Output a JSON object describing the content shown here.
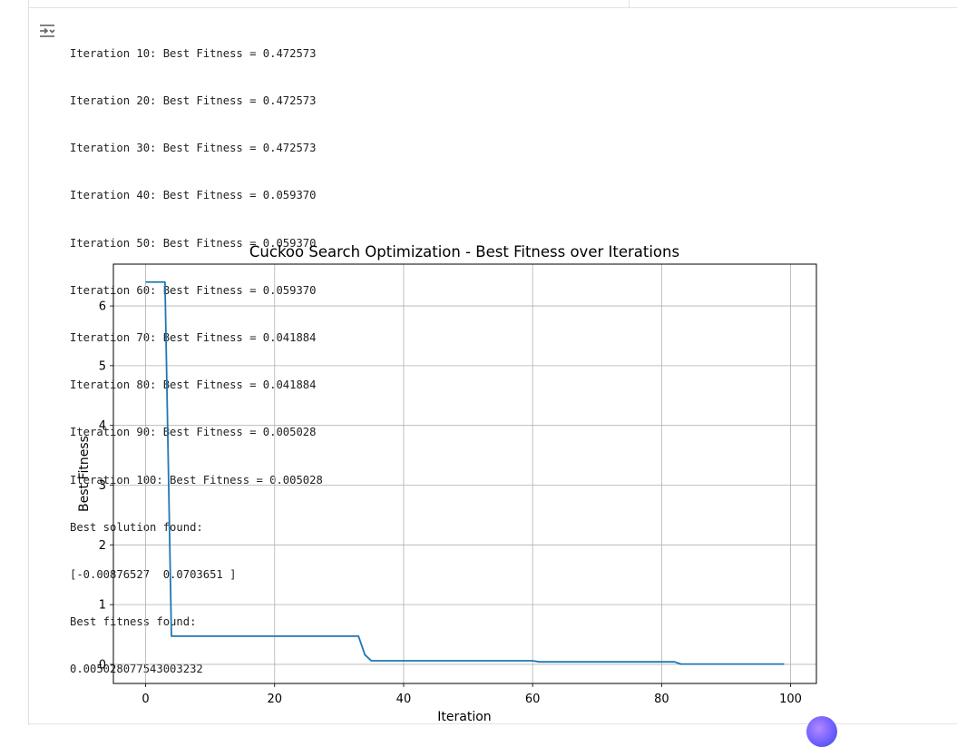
{
  "output": {
    "lines": [
      "Iteration 10: Best Fitness = 0.472573",
      "Iteration 20: Best Fitness = 0.472573",
      "Iteration 30: Best Fitness = 0.472573",
      "Iteration 40: Best Fitness = 0.059370",
      "Iteration 50: Best Fitness = 0.059370",
      "Iteration 60: Best Fitness = 0.059370",
      "Iteration 70: Best Fitness = 0.041884",
      "Iteration 80: Best Fitness = 0.041884",
      "Iteration 90: Best Fitness = 0.005028",
      "Iteration 100: Best Fitness = 0.005028",
      "Best solution found:",
      "[-0.00876527  0.0703651 ]",
      "Best fitness found:",
      "0.005028077543003232"
    ],
    "toggle_icon": "output-collapse-icon"
  },
  "chart_data": {
    "type": "line",
    "title": "Cuckoo Search Optimization - Best Fitness over Iterations",
    "xlabel": "Iteration",
    "ylabel": "Best Fitness",
    "xlim": [
      -5,
      104
    ],
    "ylim": [
      -0.32,
      6.7
    ],
    "xticks": [
      0,
      20,
      40,
      60,
      80,
      100
    ],
    "yticks": [
      0,
      1,
      2,
      3,
      4,
      5,
      6
    ],
    "grid": true,
    "color": "#1f77b4",
    "series": [
      {
        "x": [
          0,
          1,
          2,
          3,
          4,
          5,
          10,
          20,
          30,
          33,
          34,
          35,
          36,
          40,
          50,
          60,
          61,
          62,
          70,
          80,
          82,
          83,
          84,
          90,
          99
        ],
        "values": [
          6.4,
          6.4,
          6.4,
          6.4,
          0.472573,
          0.472573,
          0.472573,
          0.472573,
          0.472573,
          0.472573,
          0.16,
          0.05937,
          0.05937,
          0.05937,
          0.05937,
          0.05937,
          0.041884,
          0.041884,
          0.041884,
          0.041884,
          0.041884,
          0.005028,
          0.005028,
          0.005028,
          0.005028
        ]
      }
    ]
  }
}
